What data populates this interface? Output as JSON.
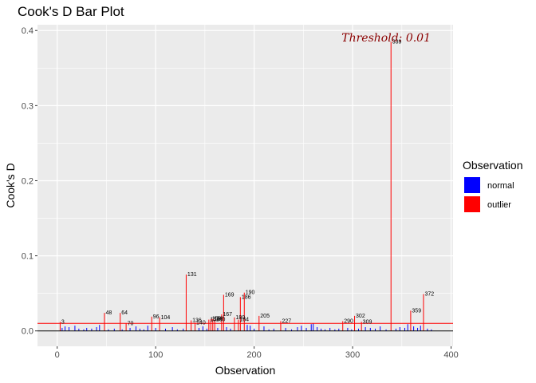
{
  "chart_data": {
    "type": "bar",
    "title": "Cook's D Bar Plot",
    "xlabel": "Observation",
    "ylabel": "Cook's D",
    "xlim": [
      -20,
      402
    ],
    "ylim": [
      -0.0205,
      0.4077
    ],
    "x_ticks": [
      0,
      100,
      200,
      300,
      400
    ],
    "y_ticks": [
      0.0,
      0.1,
      0.2,
      0.3,
      0.4
    ],
    "y_tick_labels": [
      "0.0",
      "0.1",
      "0.2",
      "0.3",
      "0.4"
    ],
    "threshold": 0.01,
    "threshold_label": "Threshold: 0.01",
    "colors": {
      "normal": "#0000ff",
      "outlier": "#ff0000",
      "panel": "#ebebeb",
      "grid": "#ffffff"
    },
    "legend": {
      "title": "Observation",
      "entries": [
        {
          "label": "normal",
          "color": "#0000ff"
        },
        {
          "label": "outlier",
          "color": "#ff0000"
        }
      ]
    },
    "outliers": [
      {
        "obs": 3,
        "value": 0.012
      },
      {
        "obs": 48,
        "value": 0.024
      },
      {
        "obs": 64,
        "value": 0.024
      },
      {
        "obs": 70,
        "value": 0.01
      },
      {
        "obs": 96,
        "value": 0.019
      },
      {
        "obs": 104,
        "value": 0.018
      },
      {
        "obs": 131,
        "value": 0.075
      },
      {
        "obs": 136,
        "value": 0.014
      },
      {
        "obs": 140,
        "value": 0.011
      },
      {
        "obs": 154,
        "value": 0.015
      },
      {
        "obs": 156,
        "value": 0.016
      },
      {
        "obs": 158,
        "value": 0.016
      },
      {
        "obs": 160,
        "value": 0.015
      },
      {
        "obs": 167,
        "value": 0.022
      },
      {
        "obs": 169,
        "value": 0.048
      },
      {
        "obs": 180,
        "value": 0.018
      },
      {
        "obs": 184,
        "value": 0.015
      },
      {
        "obs": 186,
        "value": 0.045
      },
      {
        "obs": 190,
        "value": 0.051
      },
      {
        "obs": 205,
        "value": 0.02
      },
      {
        "obs": 227,
        "value": 0.013
      },
      {
        "obs": 290,
        "value": 0.013
      },
      {
        "obs": 302,
        "value": 0.02
      },
      {
        "obs": 309,
        "value": 0.012
      },
      {
        "obs": 339,
        "value": 0.385
      },
      {
        "obs": 359,
        "value": 0.027
      },
      {
        "obs": 372,
        "value": 0.049
      }
    ],
    "normal": [
      {
        "obs": 5,
        "value": 0.004
      },
      {
        "obs": 8,
        "value": 0.006
      },
      {
        "obs": 12,
        "value": 0.005
      },
      {
        "obs": 18,
        "value": 0.007
      },
      {
        "obs": 22,
        "value": 0.003
      },
      {
        "obs": 27,
        "value": 0.002
      },
      {
        "obs": 30,
        "value": 0.004
      },
      {
        "obs": 35,
        "value": 0.003
      },
      {
        "obs": 40,
        "value": 0.005
      },
      {
        "obs": 43,
        "value": 0.008
      },
      {
        "obs": 52,
        "value": 0.002
      },
      {
        "obs": 58,
        "value": 0.003
      },
      {
        "obs": 66,
        "value": 0.002
      },
      {
        "obs": 74,
        "value": 0.004
      },
      {
        "obs": 80,
        "value": 0.006
      },
      {
        "obs": 84,
        "value": 0.003
      },
      {
        "obs": 88,
        "value": 0.002
      },
      {
        "obs": 92,
        "value": 0.007
      },
      {
        "obs": 100,
        "value": 0.004
      },
      {
        "obs": 110,
        "value": 0.003
      },
      {
        "obs": 117,
        "value": 0.005
      },
      {
        "obs": 122,
        "value": 0.002
      },
      {
        "obs": 128,
        "value": 0.003
      },
      {
        "obs": 144,
        "value": 0.004
      },
      {
        "obs": 148,
        "value": 0.006
      },
      {
        "obs": 152,
        "value": 0.003
      },
      {
        "obs": 163,
        "value": 0.004
      },
      {
        "obs": 172,
        "value": 0.005
      },
      {
        "obs": 176,
        "value": 0.003
      },
      {
        "obs": 193,
        "value": 0.008
      },
      {
        "obs": 196,
        "value": 0.007
      },
      {
        "obs": 200,
        "value": 0.003
      },
      {
        "obs": 210,
        "value": 0.006
      },
      {
        "obs": 215,
        "value": 0.002
      },
      {
        "obs": 220,
        "value": 0.003
      },
      {
        "obs": 232,
        "value": 0.004
      },
      {
        "obs": 238,
        "value": 0.002
      },
      {
        "obs": 244,
        "value": 0.005
      },
      {
        "obs": 248,
        "value": 0.007
      },
      {
        "obs": 253,
        "value": 0.004
      },
      {
        "obs": 258,
        "value": 0.009
      },
      {
        "obs": 260,
        "value": 0.01
      },
      {
        "obs": 264,
        "value": 0.005
      },
      {
        "obs": 268,
        "value": 0.003
      },
      {
        "obs": 272,
        "value": 0.002
      },
      {
        "obs": 277,
        "value": 0.004
      },
      {
        "obs": 282,
        "value": 0.002
      },
      {
        "obs": 286,
        "value": 0.003
      },
      {
        "obs": 295,
        "value": 0.004
      },
      {
        "obs": 299,
        "value": 0.002
      },
      {
        "obs": 306,
        "value": 0.003
      },
      {
        "obs": 313,
        "value": 0.005
      },
      {
        "obs": 318,
        "value": 0.004
      },
      {
        "obs": 323,
        "value": 0.003
      },
      {
        "obs": 328,
        "value": 0.006
      },
      {
        "obs": 334,
        "value": 0.002
      },
      {
        "obs": 344,
        "value": 0.003
      },
      {
        "obs": 348,
        "value": 0.005
      },
      {
        "obs": 353,
        "value": 0.004
      },
      {
        "obs": 356,
        "value": 0.009
      },
      {
        "obs": 362,
        "value": 0.006
      },
      {
        "obs": 366,
        "value": 0.004
      },
      {
        "obs": 369,
        "value": 0.007
      },
      {
        "obs": 376,
        "value": 0.003
      },
      {
        "obs": 380,
        "value": 0.002
      }
    ]
  }
}
